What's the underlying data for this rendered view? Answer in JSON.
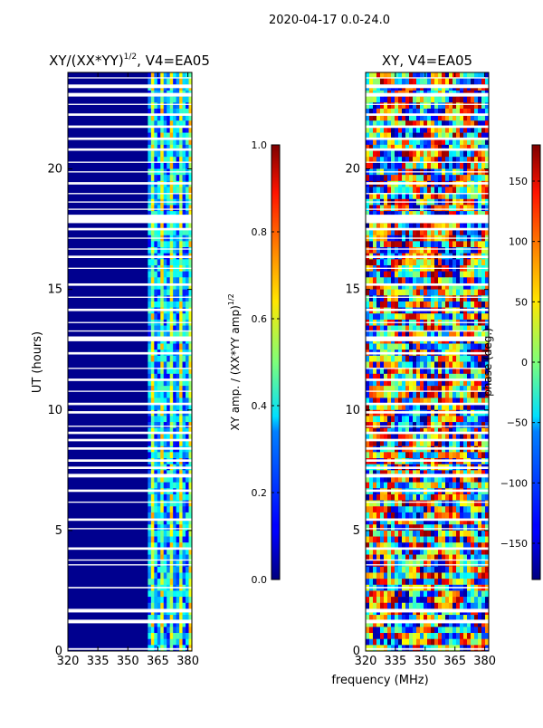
{
  "suptitle": "2020-04-17 0.0-24.0",
  "chart_data": [
    {
      "type": "heatmap",
      "title_main": "XY/(XX*YY)",
      "title_exp": "1/2",
      "title_suffix": ", V4=EA05",
      "xlabel": "",
      "ylabel": "UT (hours)",
      "xlim": [
        320,
        382
      ],
      "ylim": [
        0,
        24
      ],
      "xticks": [
        320,
        335,
        350,
        365,
        380
      ],
      "yticks": [
        0,
        5,
        10,
        15,
        20
      ],
      "colorscale": "jet",
      "colorbar": {
        "label_main": "XY amp. / (XX*YY amp)",
        "label_exp": "1/2",
        "range": [
          0.0,
          1.0
        ],
        "ticks": [
          "0.0",
          "0.2",
          "0.4",
          "0.6",
          "0.8",
          "1.0"
        ],
        "tick_values": [
          0.0,
          0.2,
          0.4,
          0.6,
          0.8,
          1.0
        ]
      },
      "content_summary": "Mostly low values (~0.1) below 360 MHz; high-amplitude vertical bands (0.4-0.7) between ~360 and 382 MHz; many horizontal white gaps (flagged data)."
    },
    {
      "type": "heatmap",
      "title_main": "XY, V4=EA05",
      "xlabel": "frequency (MHz)",
      "ylabel": "",
      "xlim": [
        320,
        382
      ],
      "ylim": [
        0,
        24
      ],
      "xticks": [
        320,
        335,
        350,
        365,
        380
      ],
      "yticks": [
        0,
        5,
        10,
        15,
        20
      ],
      "colorscale": "jet",
      "colorbar": {
        "label_main": "phase (deg.)",
        "range": [
          -180,
          180
        ],
        "ticks": [
          "150",
          "100",
          "50",
          "0",
          "−50",
          "−100",
          "−150"
        ],
        "tick_values": [
          150,
          100,
          50,
          0,
          -50,
          -100,
          -150
        ]
      },
      "content_summary": "Phase values spanning -180 to 180 degrees, noisy with smooth regions near 350-382 MHz; horizontal white gaps align with left panel."
    }
  ],
  "gaps_hours": [
    [
      0.05,
      0.12
    ],
    [
      1.15,
      1.3
    ],
    [
      1.6,
      1.75
    ],
    [
      2.6,
      2.66
    ],
    [
      3.55,
      3.6
    ],
    [
      3.75,
      3.8
    ],
    [
      4.2,
      4.3
    ],
    [
      5.05,
      5.1
    ],
    [
      5.4,
      5.5
    ],
    [
      6.15,
      6.2
    ],
    [
      6.6,
      6.7
    ],
    [
      7.2,
      7.35
    ],
    [
      7.55,
      7.65
    ],
    [
      7.85,
      7.95
    ],
    [
      8.35,
      8.45
    ],
    [
      8.7,
      8.8
    ],
    [
      9.0,
      9.1
    ],
    [
      9.3,
      9.35
    ],
    [
      9.85,
      9.95
    ],
    [
      10.2,
      10.3
    ],
    [
      10.75,
      10.8
    ],
    [
      11.2,
      11.3
    ],
    [
      11.7,
      11.75
    ],
    [
      12.3,
      12.4
    ],
    [
      12.85,
      13.05
    ],
    [
      13.25,
      13.3
    ],
    [
      13.6,
      13.65
    ],
    [
      14.1,
      14.2
    ],
    [
      14.65,
      14.7
    ],
    [
      15.15,
      15.25
    ],
    [
      15.85,
      15.9
    ],
    [
      16.3,
      16.4
    ],
    [
      16.65,
      16.7
    ],
    [
      17.1,
      17.15
    ],
    [
      17.45,
      17.55
    ],
    [
      17.75,
      18.1
    ],
    [
      18.3,
      18.35
    ],
    [
      18.6,
      18.65
    ],
    [
      18.95,
      19.0
    ],
    [
      19.35,
      19.45
    ],
    [
      19.85,
      19.9
    ],
    [
      20.25,
      20.3
    ],
    [
      20.75,
      20.85
    ],
    [
      21.2,
      21.3
    ],
    [
      21.7,
      21.8
    ],
    [
      22.2,
      22.3
    ],
    [
      22.65,
      22.7
    ],
    [
      23.0,
      23.15
    ],
    [
      23.35,
      23.5
    ],
    [
      23.75,
      23.8
    ]
  ]
}
